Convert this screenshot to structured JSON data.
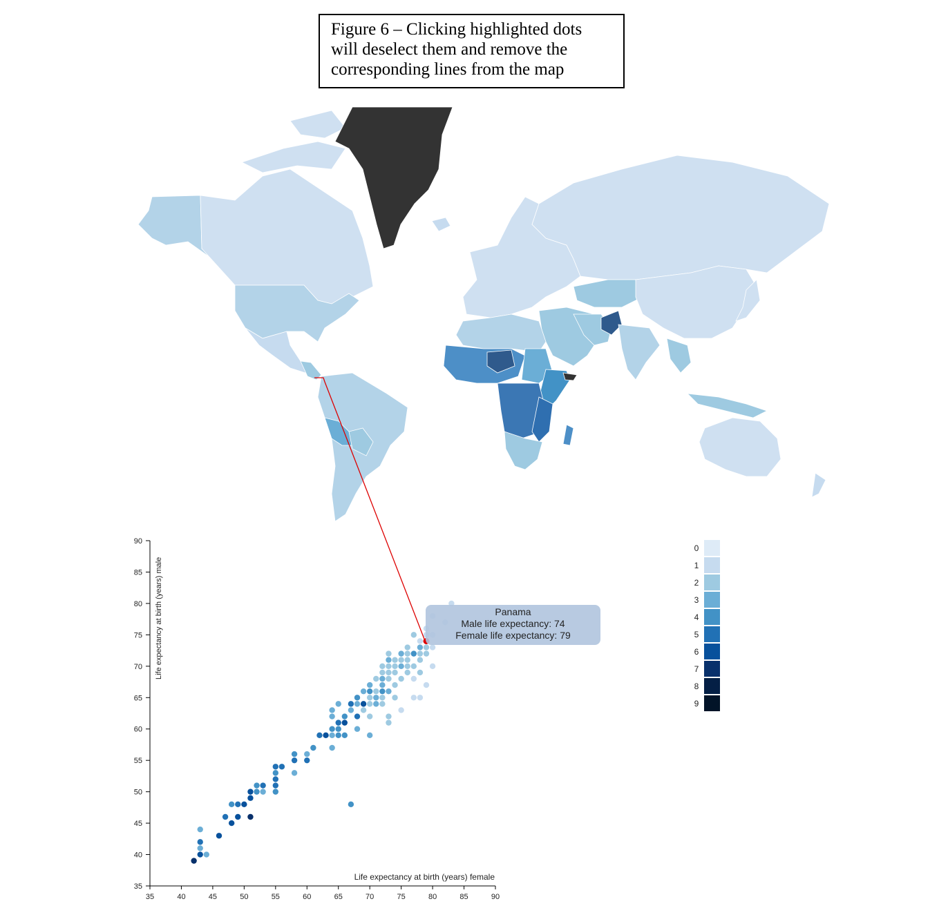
{
  "caption": {
    "line1": "Figure 6 – Clicking highlighted dots",
    "line2": "will deselect them and remove the",
    "line3": "corresponding lines from the map"
  },
  "colors": {
    "scale": [
      "#deebf7",
      "#c6dbef",
      "#9ecae1",
      "#6baed6",
      "#4292c6",
      "#2171b5",
      "#08519c",
      "#08306b",
      "#041f45",
      "#021428"
    ],
    "greenland": "#333333",
    "link": "#dd0000"
  },
  "tooltip": {
    "country": "Panama",
    "male": "Male life expectancy: 74",
    "female": "Female life expectancy: 79"
  },
  "legend": {
    "labels": [
      "0",
      "1",
      "2",
      "3",
      "4",
      "5",
      "6",
      "7",
      "8",
      "9"
    ]
  },
  "chart_data": {
    "type": "scatter",
    "xlabel": "Life expectancy at birth (years) female",
    "ylabel": "Life expectancy at birth (years) male",
    "xlim": [
      35,
      90
    ],
    "ylim": [
      35,
      90
    ],
    "xticks": [
      35,
      40,
      45,
      50,
      55,
      60,
      65,
      70,
      75,
      80,
      85,
      90
    ],
    "yticks": [
      35,
      40,
      45,
      50,
      55,
      60,
      65,
      70,
      75,
      80,
      85,
      90
    ],
    "selected": {
      "x": 79,
      "y": 74
    },
    "points": [
      [
        42,
        39,
        7
      ],
      [
        43,
        40,
        6
      ],
      [
        43,
        41,
        3
      ],
      [
        43,
        42,
        5
      ],
      [
        43,
        44,
        3
      ],
      [
        44,
        40,
        3
      ],
      [
        46,
        43,
        6
      ],
      [
        47,
        46,
        5
      ],
      [
        48,
        45,
        6
      ],
      [
        48,
        48,
        4
      ],
      [
        49,
        46,
        6
      ],
      [
        49,
        48,
        5
      ],
      [
        50,
        48,
        6
      ],
      [
        51,
        46,
        7
      ],
      [
        51,
        49,
        6
      ],
      [
        51,
        50,
        6
      ],
      [
        52,
        50,
        4
      ],
      [
        52,
        51,
        4
      ],
      [
        53,
        50,
        3
      ],
      [
        53,
        51,
        5
      ],
      [
        55,
        50,
        4
      ],
      [
        55,
        51,
        5
      ],
      [
        55,
        52,
        5
      ],
      [
        55,
        53,
        4
      ],
      [
        55,
        54,
        5
      ],
      [
        56,
        54,
        5
      ],
      [
        58,
        53,
        3
      ],
      [
        58,
        55,
        5
      ],
      [
        58,
        56,
        4
      ],
      [
        60,
        55,
        5
      ],
      [
        60,
        56,
        3
      ],
      [
        61,
        57,
        4
      ],
      [
        62,
        59,
        5
      ],
      [
        63,
        59,
        6
      ],
      [
        64,
        57,
        3
      ],
      [
        64,
        59,
        3
      ],
      [
        64,
        60,
        4
      ],
      [
        64,
        62,
        3
      ],
      [
        64,
        63,
        3
      ],
      [
        65,
        59,
        4
      ],
      [
        65,
        60,
        4
      ],
      [
        65,
        61,
        5
      ],
      [
        65,
        64,
        3
      ],
      [
        66,
        59,
        4
      ],
      [
        66,
        61,
        6
      ],
      [
        66,
        62,
        4
      ],
      [
        67,
        63,
        3
      ],
      [
        67,
        64,
        5
      ],
      [
        67,
        48,
        4
      ],
      [
        68,
        60,
        3
      ],
      [
        68,
        62,
        5
      ],
      [
        68,
        64,
        3
      ],
      [
        68,
        65,
        4
      ],
      [
        69,
        63,
        2
      ],
      [
        69,
        64,
        6
      ],
      [
        69,
        66,
        3
      ],
      [
        70,
        59,
        3
      ],
      [
        70,
        62,
        2
      ],
      [
        70,
        64,
        2
      ],
      [
        70,
        65,
        2
      ],
      [
        70,
        66,
        4
      ],
      [
        70,
        67,
        3
      ],
      [
        71,
        64,
        3
      ],
      [
        71,
        65,
        3
      ],
      [
        71,
        66,
        2
      ],
      [
        71,
        68,
        2
      ],
      [
        72,
        64,
        2
      ],
      [
        72,
        65,
        2
      ],
      [
        72,
        66,
        4
      ],
      [
        72,
        67,
        3
      ],
      [
        72,
        68,
        3
      ],
      [
        72,
        69,
        2
      ],
      [
        72,
        70,
        2
      ],
      [
        73,
        61,
        2
      ],
      [
        73,
        62,
        2
      ],
      [
        73,
        66,
        3
      ],
      [
        73,
        68,
        2
      ],
      [
        73,
        69,
        2
      ],
      [
        73,
        70,
        2
      ],
      [
        73,
        71,
        3
      ],
      [
        73,
        72,
        2
      ],
      [
        74,
        65,
        2
      ],
      [
        74,
        67,
        2
      ],
      [
        74,
        69,
        2
      ],
      [
        74,
        70,
        2
      ],
      [
        74,
        71,
        2
      ],
      [
        75,
        63,
        1
      ],
      [
        75,
        68,
        2
      ],
      [
        75,
        70,
        3
      ],
      [
        75,
        71,
        2
      ],
      [
        75,
        72,
        3
      ],
      [
        76,
        69,
        2
      ],
      [
        76,
        70,
        2
      ],
      [
        76,
        71,
        2
      ],
      [
        76,
        72,
        2
      ],
      [
        76,
        73,
        2
      ],
      [
        77,
        65,
        1
      ],
      [
        77,
        68,
        1
      ],
      [
        77,
        70,
        2
      ],
      [
        77,
        72,
        4
      ],
      [
        77,
        75,
        2
      ],
      [
        78,
        65,
        1
      ],
      [
        78,
        69,
        2
      ],
      [
        78,
        71,
        2
      ],
      [
        78,
        72,
        2
      ],
      [
        78,
        73,
        3
      ],
      [
        78,
        74,
        1
      ],
      [
        79,
        67,
        1
      ],
      [
        79,
        72,
        2
      ],
      [
        79,
        73,
        2
      ],
      [
        79,
        75,
        1
      ],
      [
        79,
        76,
        1
      ],
      [
        80,
        70,
        1
      ],
      [
        80,
        73,
        1
      ],
      [
        80,
        75,
        1
      ],
      [
        80,
        78,
        1
      ],
      [
        83,
        80,
        1
      ],
      [
        82,
        77,
        1
      ]
    ]
  }
}
